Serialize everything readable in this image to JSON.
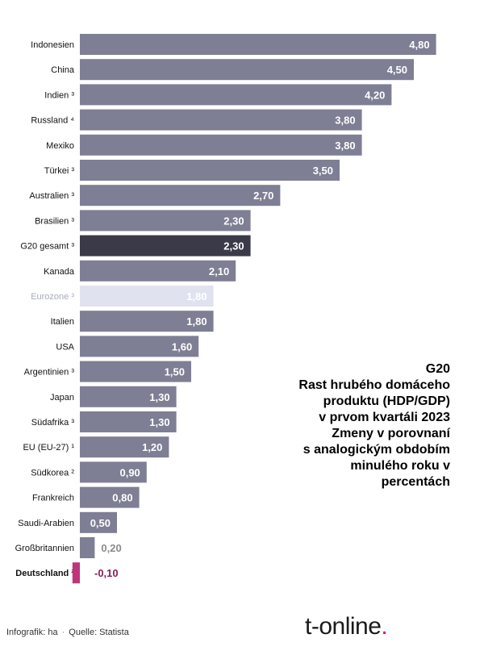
{
  "chart_data": {
    "type": "bar",
    "orientation": "horizontal",
    "categories": [
      "Indonesien",
      "China",
      "Indien ³",
      "Russland ⁴",
      "Mexiko",
      "Türkei ³",
      "Australien ³",
      "Brasilien ³",
      "G20 gesamt ³",
      "Kanada",
      "Eurozone ³",
      "Italien",
      "USA",
      "Argentinien ³",
      "Japan",
      "Südafrika ³",
      "EU (EU-27) ¹",
      "Südkorea ²",
      "Frankreich",
      "Saudi-Arabien",
      "Großbritannien",
      "Deutschland ²"
    ],
    "values": [
      4.8,
      4.5,
      4.2,
      3.8,
      3.8,
      3.5,
      2.7,
      2.3,
      2.3,
      2.1,
      1.8,
      1.8,
      1.6,
      1.5,
      1.3,
      1.3,
      1.2,
      0.9,
      0.8,
      0.5,
      0.2,
      -0.1
    ],
    "value_labels": [
      "4,80",
      "4,50",
      "4,20",
      "3,80",
      "3,80",
      "3,50",
      "2,70",
      "2,30",
      "2,30",
      "2,10",
      "1,80",
      "1,80",
      "1,60",
      "1,50",
      "1,30",
      "1,30",
      "1,20",
      "0,90",
      "0,80",
      "0,50",
      "0,20",
      "-0,10"
    ],
    "highlight": {
      "G20 gesamt ³": "dark",
      "Eurozone ³": "light",
      "Deutschland ²": "negative"
    },
    "grid": false,
    "legend": "none"
  },
  "colors": {
    "bar": "#7e7e94",
    "bar_dark": "#3a3a48",
    "bar_light": "#e0e2ef",
    "bar_negative": "#c0357a",
    "label_light": "#a8aabb",
    "label_outside": "#8a8a8a",
    "label_negative": "#8e1c5a",
    "accent": "#e5007d"
  },
  "info": {
    "l1": "G20",
    "l2": "Rast hrubého domáceho",
    "l3": "produktu (HDP/GDP)",
    "l4": "v prvom kvartáli 2023",
    "l5": "Zmeny v porovnaní",
    "l6": "s analogickým obdobím",
    "l7": "minulého roku v",
    "l8": "percentách"
  },
  "footer": {
    "credit": "Infografik: ha",
    "separator": "·",
    "source": "Quelle: Statista"
  },
  "logo": {
    "text": "t-online",
    "dot": "."
  }
}
